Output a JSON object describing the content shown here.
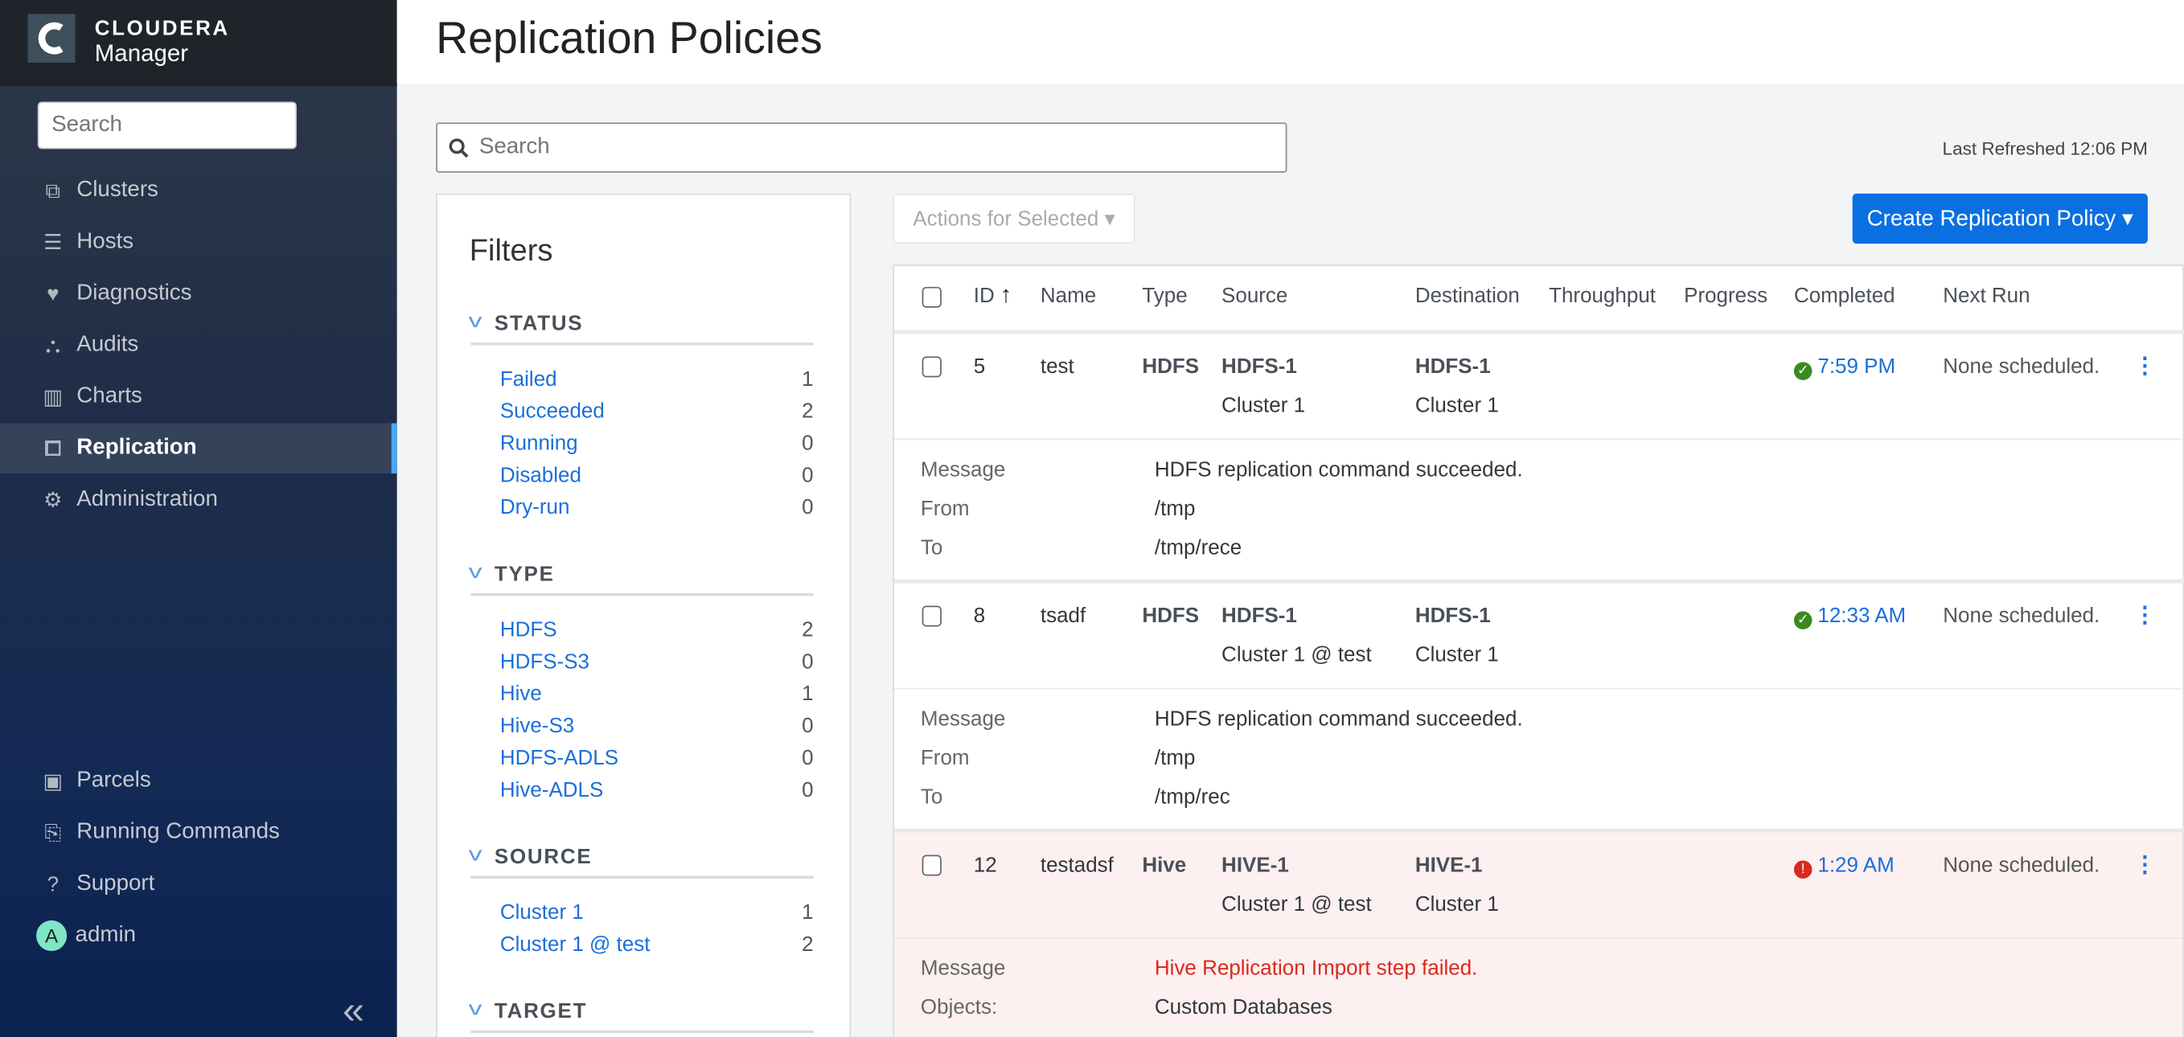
{
  "brand": {
    "name": "CLOUDERA",
    "product": "Manager"
  },
  "sidebar": {
    "search_placeholder": "Search",
    "items": [
      {
        "label": "Clusters",
        "icon": "cubes-icon",
        "glyph": "⧉"
      },
      {
        "label": "Hosts",
        "icon": "server-icon",
        "glyph": "☰"
      },
      {
        "label": "Diagnostics",
        "icon": "heartbeat-icon",
        "glyph": "♥"
      },
      {
        "label": "Audits",
        "icon": "binoculars-icon",
        "glyph": "⛬"
      },
      {
        "label": "Charts",
        "icon": "bar-chart-icon",
        "glyph": "▥"
      },
      {
        "label": "Replication",
        "icon": "replication-icon",
        "glyph": "⧠",
        "active": true
      },
      {
        "label": "Administration",
        "icon": "gear-icon",
        "glyph": "⚙"
      }
    ],
    "bottom_items": [
      {
        "label": "Parcels",
        "icon": "gift-icon",
        "glyph": "▣"
      },
      {
        "label": "Running Commands",
        "icon": "scroll-play-icon",
        "glyph": "⎘"
      },
      {
        "label": "Support",
        "icon": "question-circle-icon",
        "glyph": "?"
      }
    ],
    "user": {
      "name": "admin",
      "initial": "A"
    },
    "collapse_glyph": "«"
  },
  "page": {
    "title": "Replication Policies",
    "search_placeholder": "Search",
    "last_refreshed": "Last Refreshed 12:06 PM"
  },
  "filters": {
    "title": "Filters",
    "sections": [
      {
        "name": "STATUS",
        "items": [
          {
            "label": "Failed",
            "count": "1"
          },
          {
            "label": "Succeeded",
            "count": "2"
          },
          {
            "label": "Running",
            "count": "0"
          },
          {
            "label": "Disabled",
            "count": "0"
          },
          {
            "label": "Dry-run",
            "count": "0"
          }
        ]
      },
      {
        "name": "TYPE",
        "items": [
          {
            "label": "HDFS",
            "count": "2"
          },
          {
            "label": "HDFS-S3",
            "count": "0"
          },
          {
            "label": "Hive",
            "count": "1"
          },
          {
            "label": "Hive-S3",
            "count": "0"
          },
          {
            "label": "HDFS-ADLS",
            "count": "0"
          },
          {
            "label": "Hive-ADLS",
            "count": "0"
          }
        ]
      },
      {
        "name": "SOURCE",
        "items": [
          {
            "label": "Cluster 1",
            "count": "1"
          },
          {
            "label": "Cluster 1 @ test",
            "count": "2"
          }
        ]
      },
      {
        "name": "TARGET",
        "items": []
      }
    ]
  },
  "toolbar": {
    "actions_label": "Actions for Selected ▾",
    "create_label": "Create Replication Policy ▾"
  },
  "table": {
    "columns": [
      "ID",
      "Name",
      "Type",
      "Source",
      "Destination",
      "Throughput",
      "Progress",
      "Completed",
      "Next Run"
    ],
    "sort_indicator": "↑",
    "rows": [
      {
        "id": "5",
        "name": "test",
        "type": "HDFS",
        "source": "HDFS-1",
        "source_cluster": "Cluster 1",
        "dest": "HDFS-1",
        "dest_cluster": "Cluster 1",
        "status": "success",
        "completed": "7:59 PM",
        "next_run": "None scheduled.",
        "details": [
          {
            "label": "Message",
            "value": "HDFS replication command succeeded."
          },
          {
            "label": "From",
            "value": "/tmp"
          },
          {
            "label": "To",
            "value": "/tmp/rece"
          }
        ]
      },
      {
        "id": "8",
        "name": "tsadf",
        "type": "HDFS",
        "source": "HDFS-1",
        "source_cluster": "Cluster 1 @ test",
        "dest": "HDFS-1",
        "dest_cluster": "Cluster 1",
        "status": "success",
        "completed": "12:33 AM",
        "next_run": "None scheduled.",
        "details": [
          {
            "label": "Message",
            "value": "HDFS replication command succeeded."
          },
          {
            "label": "From",
            "value": "/tmp"
          },
          {
            "label": "To",
            "value": "/tmp/rec"
          }
        ]
      },
      {
        "id": "12",
        "name": "testadsf",
        "type": "Hive",
        "source": "HIVE-1",
        "source_cluster": "Cluster 1 @ test",
        "dest": "HIVE-1",
        "dest_cluster": "Cluster 1",
        "status": "failed",
        "completed": "1:29 AM",
        "next_run": "None scheduled.",
        "details": [
          {
            "label": "Message",
            "value": "Hive Replication Import step failed.",
            "error": true
          },
          {
            "label": "Objects:",
            "value": "Custom Databases"
          }
        ]
      }
    ]
  },
  "colors": {
    "accent": "#0a70e2",
    "link": "#1a6fd8",
    "success": "#3a8a1f",
    "error": "#d9291c",
    "failed_row_bg": "#fdf0f0",
    "sidebar_active_bar": "#49a7f5"
  }
}
